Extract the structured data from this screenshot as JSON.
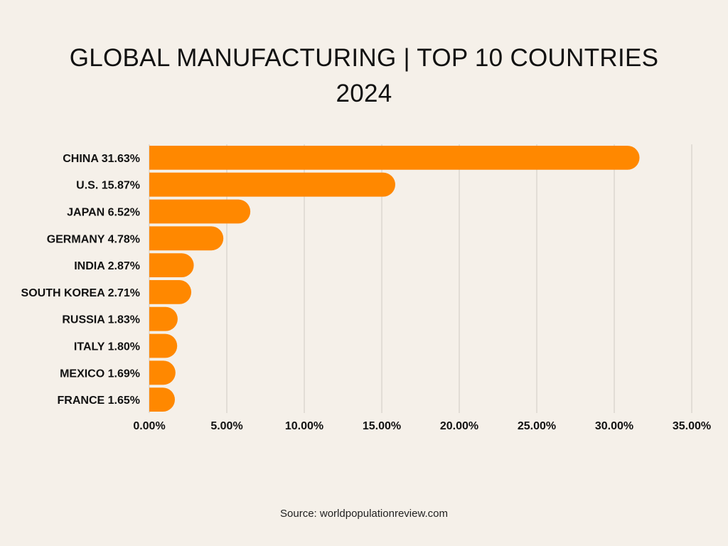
{
  "chart_data": {
    "type": "bar",
    "orientation": "horizontal",
    "title": "GLOBAL MANUFACTURING | TOP 10 COUNTRIES",
    "subtitle": "2024",
    "categories": [
      "CHINA",
      "U.S.",
      "JAPAN",
      "GERMANY",
      "INDIA",
      "SOUTH KOREA",
      "RUSSIA",
      "ITALY",
      "MEXICO",
      "FRANCE"
    ],
    "category_labels": [
      "CHINA 31.63%",
      "U.S. 15.87%",
      "JAPAN 6.52%",
      "GERMANY 4.78%",
      "INDIA 2.87%",
      "SOUTH KOREA 2.71%",
      "RUSSIA 1.83%",
      "ITALY 1.80%",
      "MEXICO 1.69%",
      "FRANCE 1.65%"
    ],
    "values": [
      31.63,
      15.87,
      6.52,
      4.78,
      2.87,
      2.71,
      1.83,
      1.8,
      1.69,
      1.65
    ],
    "xlabel": "",
    "ylabel": "",
    "xlim": [
      0,
      35
    ],
    "xticks": [
      0,
      5,
      10,
      15,
      20,
      25,
      30,
      35
    ],
    "xtick_labels": [
      "0.00%",
      "5.00%",
      "10.00%",
      "15.00%",
      "20.00%",
      "25.00%",
      "30.00%",
      "35.00%"
    ],
    "grid": "vertical",
    "legend": "none",
    "bar_color": "#ff8800",
    "source": "Source: worldpopulationreview.com"
  }
}
